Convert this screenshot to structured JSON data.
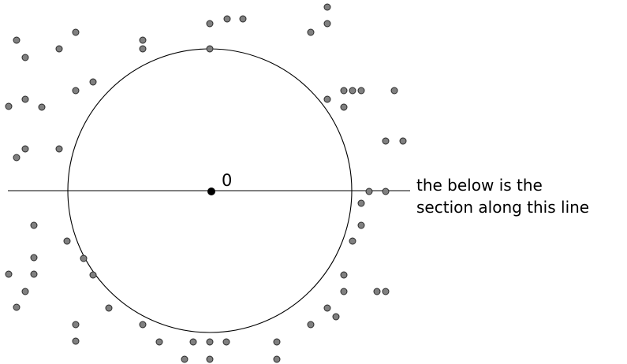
{
  "figure": {
    "origin_label": "0",
    "caption_line1": "the below is the",
    "caption_line2": "section along this line"
  },
  "colors": {
    "point_fill": "#808080",
    "point_stroke": "#2a2a2a",
    "origin_fill": "#000000",
    "line": "#000000"
  }
}
